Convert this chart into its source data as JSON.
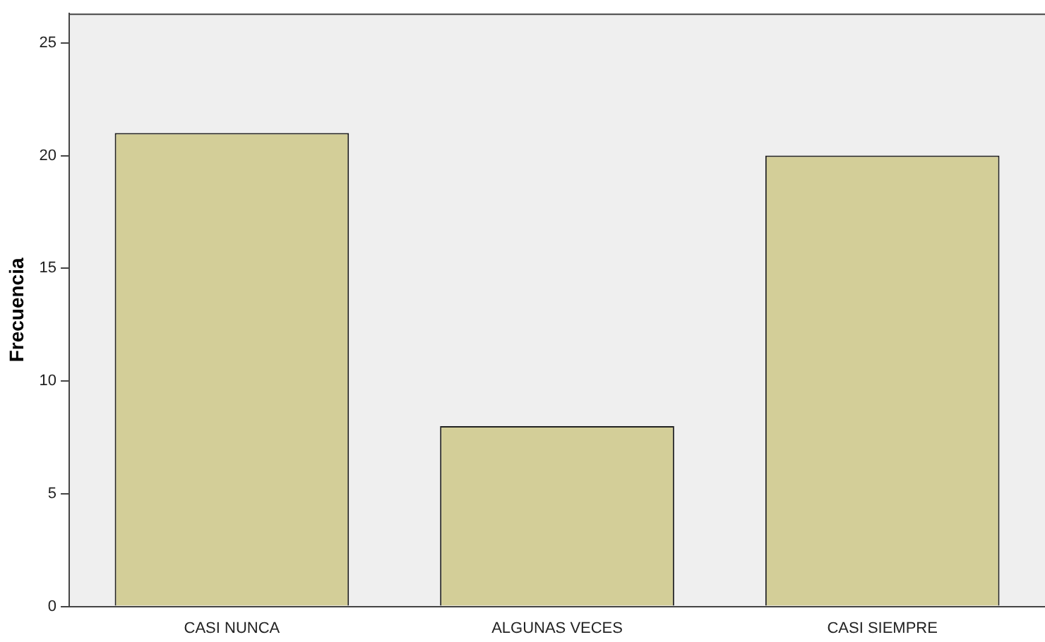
{
  "chart_data": {
    "type": "bar",
    "ylabel": "Frecuencia",
    "categories": [
      "CASI NUNCA",
      "ALGUNAS VECES",
      "CASI SIEMPRE"
    ],
    "values": [
      21,
      8,
      20
    ],
    "color": "#d3ce98",
    "ylim": [
      0,
      26.3
    ],
    "yticks": [
      0,
      5,
      10,
      15,
      20,
      25
    ],
    "grid": false,
    "legend": false
  }
}
